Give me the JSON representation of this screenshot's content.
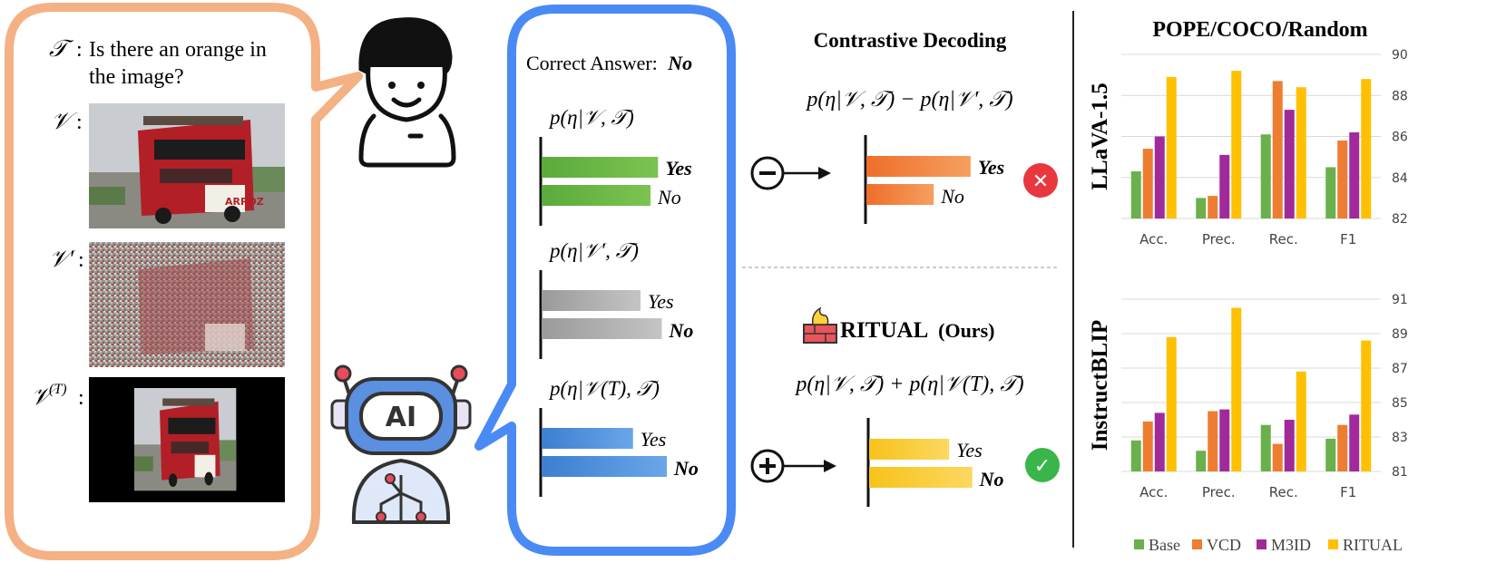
{
  "question": {
    "label_T": "𝒯",
    "text_line1": "Is there an orange in",
    "text_line2": "the image?",
    "label_V": "𝒱",
    "label_Vprime": "𝒱′",
    "label_VT": "𝒱",
    "label_VT_sup": "(T)",
    "colon": ":",
    "bus_sign": "ARROZ"
  },
  "answer_panel": {
    "correct_prefix": "Correct Answer:",
    "correct_value": "No",
    "groups": [
      {
        "formula": "p(η|𝒱, 𝒯)",
        "yes": 0.93,
        "no": 0.87,
        "bold": "yes",
        "color": "#5aaa3c"
      },
      {
        "formula": "p(η|𝒱′, 𝒯)",
        "yes": 0.79,
        "no": 0.96,
        "bold": "no",
        "color": "#a8a8a8"
      },
      {
        "formula": "p(η|𝒱(T), 𝒯)",
        "yes": 0.73,
        "no": 1.0,
        "bold": "no",
        "color": "#4a8ad6"
      }
    ],
    "yes_label": "Yes",
    "no_label": "No"
  },
  "contrastive": {
    "title": "Contrastive Decoding",
    "formula": "p(η|𝒱, 𝒯) − p(η|𝒱′, 𝒯)",
    "operator": "−",
    "yes": 0.99,
    "no": 0.64,
    "bold": "yes",
    "color": "#ee7b30",
    "result": "✕",
    "result_color": "#e8373f"
  },
  "ritual": {
    "name": "RITUAL",
    "suffix": "(Ours)",
    "formula": "p(η|𝒱, 𝒯) + p(η|𝒱(T), 𝒯)",
    "operator": "+",
    "yes": 0.76,
    "no": 0.98,
    "bold": "no",
    "color": "#f7c21b",
    "result": "✓",
    "result_color": "#39b54a"
  },
  "chart_data": [
    {
      "type": "bar",
      "title": "POPE/COCO/Random",
      "ylabel": "LLaVA-1.5",
      "categories": [
        "Acc.",
        "Prec.",
        "Rec.",
        "F1"
      ],
      "ylim": [
        82,
        90
      ],
      "yticks": [
        82,
        84,
        86,
        88,
        90
      ],
      "series": [
        {
          "name": "Base",
          "color": "#6ab04c",
          "values": [
            84.3,
            83.0,
            86.1,
            84.5
          ]
        },
        {
          "name": "VCD",
          "color": "#ed7d31",
          "values": [
            85.4,
            83.1,
            88.7,
            85.8
          ]
        },
        {
          "name": "M3ID",
          "color": "#a12a9b",
          "values": [
            86.0,
            85.1,
            87.3,
            86.2
          ]
        },
        {
          "name": "RITUAL",
          "color": "#ffc000",
          "values": [
            88.9,
            89.2,
            88.4,
            88.8
          ]
        }
      ]
    },
    {
      "type": "bar",
      "title": "",
      "ylabel": "InstructBLIP",
      "categories": [
        "Acc.",
        "Prec.",
        "Rec.",
        "F1"
      ],
      "ylim": [
        81,
        91
      ],
      "yticks": [
        81,
        83,
        85,
        87,
        89,
        91
      ],
      "series": [
        {
          "name": "Base",
          "color": "#6ab04c",
          "values": [
            82.8,
            82.2,
            83.7,
            82.9
          ]
        },
        {
          "name": "VCD",
          "color": "#ed7d31",
          "values": [
            83.9,
            84.5,
            82.6,
            83.7
          ]
        },
        {
          "name": "M3ID",
          "color": "#a12a9b",
          "values": [
            84.4,
            84.6,
            84.0,
            84.3
          ]
        },
        {
          "name": "RITUAL",
          "color": "#ffc000",
          "values": [
            88.8,
            90.5,
            86.8,
            88.6
          ]
        }
      ]
    }
  ],
  "legend": [
    {
      "name": "Base",
      "color": "#6ab04c"
    },
    {
      "name": "VCD",
      "color": "#ed7d31"
    },
    {
      "name": "M3ID",
      "color": "#a12a9b"
    },
    {
      "name": "RITUAL",
      "color": "#ffc000"
    }
  ],
  "robot_badge": "AI"
}
